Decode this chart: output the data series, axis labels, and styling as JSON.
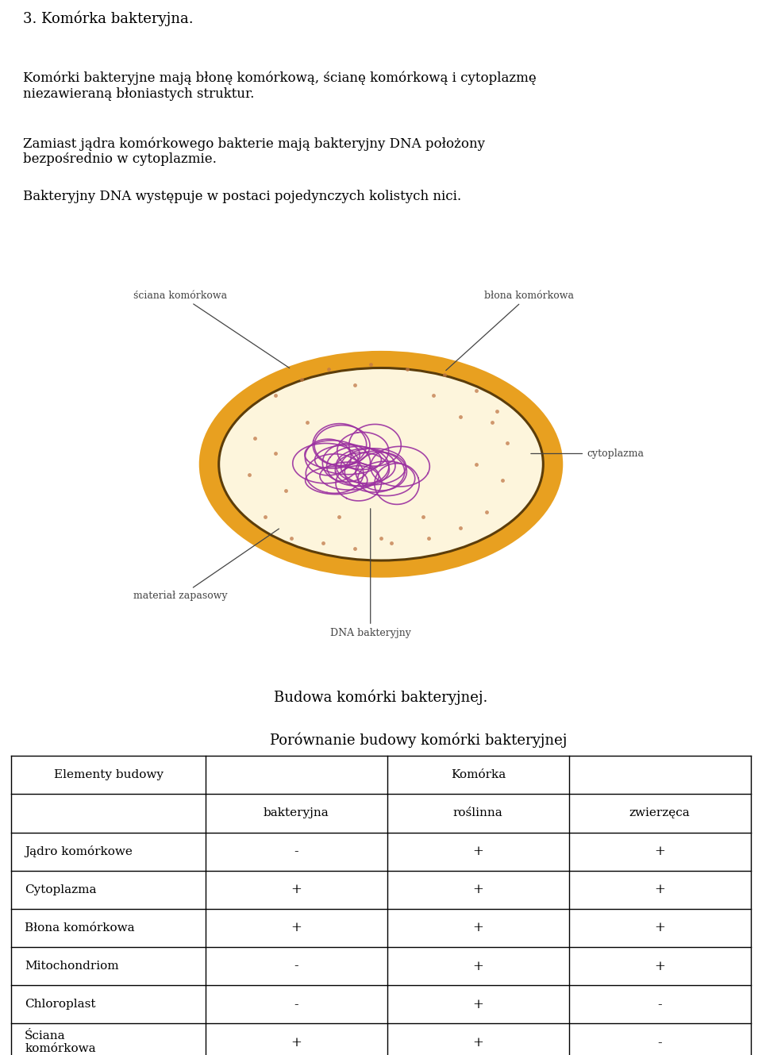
{
  "title_line1": "3. Komórka bakteryjna.",
  "paragraph1": "Komórki bakteryjne mają błonę komórkową, ścianę komórkową i cytoplazmę\nniezawieraną błoniastych struktur.",
  "paragraph2": "Zamiast jądra komórkowego bakterie mają bakteryjny DNA położony\nbezpośrednio w cytoplazmie.",
  "paragraph3": "Bakteryjny DNA występuje w postaci pojedynczych kolistych nici.",
  "caption_diagram": "Budowa komórki bakteryjnej.",
  "table_title": "Porównanie budowy komórki bakteryjnej",
  "table_header_col0": "Elementy budowy",
  "table_header_col1": "Komórka",
  "table_subheader": [
    "bakteryjna",
    "roślinna",
    "zwierzęca"
  ],
  "table_rows": [
    [
      "Jądro komórkowe",
      "-",
      "+",
      "+"
    ],
    [
      "Cytoplazma",
      "+",
      "+",
      "+"
    ],
    [
      "Błona komórkowa",
      "+",
      "+",
      "+"
    ],
    [
      "Mitochondriom",
      "-",
      "+",
      "+"
    ],
    [
      "Chloroplast",
      "-",
      "+",
      "-"
    ],
    [
      "Ściana\nkomórkowa",
      "+",
      "+",
      "-"
    ]
  ],
  "cell_wall_color": "#E8A020",
  "cell_membrane_color": "#5C3D0A",
  "cytoplasm_color": "#FDF5DC",
  "dna_color": "#9B30A0",
  "dot_color": "#C07848",
  "label_color": "#444444",
  "background": "#FFFFFF",
  "label_sciana": "ściana komórkowa",
  "label_blona": "błona komórkowa",
  "label_cytoplazma": "cytoplazma",
  "label_material": "materiał zapasowy",
  "label_dna": "DNA bakteryjny"
}
